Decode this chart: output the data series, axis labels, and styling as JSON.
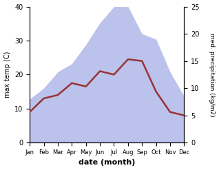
{
  "months": [
    "Jan",
    "Feb",
    "Mar",
    "Apr",
    "May",
    "Jun",
    "Jul",
    "Aug",
    "Sep",
    "Oct",
    "Nov",
    "Dec"
  ],
  "temperature": [
    9.0,
    13.0,
    14.0,
    17.5,
    16.5,
    21.0,
    20.0,
    24.5,
    24.0,
    15.0,
    9.0,
    8.0
  ],
  "precipitation": [
    8.0,
    10.0,
    13.0,
    14.5,
    18.0,
    22.0,
    25.0,
    25.0,
    20.0,
    19.0,
    13.0,
    8.5
  ],
  "temp_color": "#993333",
  "precip_color": "#b0b8e8",
  "background_color": "#ffffff",
  "xlabel": "date (month)",
  "ylabel_left": "max temp (C)",
  "ylabel_right": "med. precipitation (kg/m2)",
  "ylim_left": [
    0,
    40
  ],
  "ylim_right": [
    0,
    25
  ],
  "yticks_left": [
    0,
    10,
    20,
    30,
    40
  ],
  "yticks_right": [
    0,
    5,
    10,
    15,
    20,
    25
  ],
  "linewidth": 1.8
}
